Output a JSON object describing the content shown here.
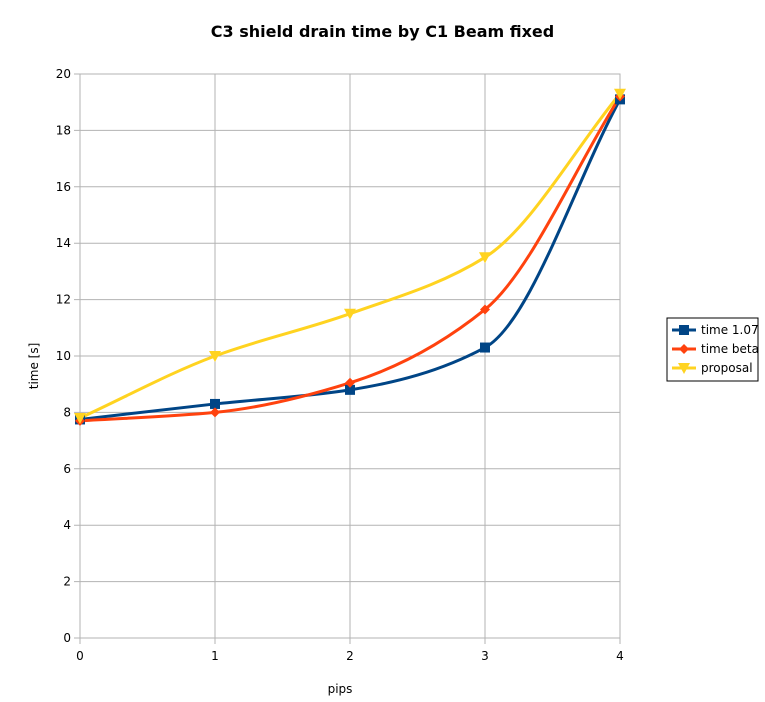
{
  "chart_data": {
    "type": "line",
    "title": "C3 shield drain time by C1 Beam fixed",
    "xlabel": "pips",
    "ylabel": "time [s]",
    "x": [
      0,
      1,
      2,
      3,
      4
    ],
    "xlim": [
      0,
      4
    ],
    "ylim": [
      0,
      20
    ],
    "x_ticks": [
      "0",
      "1",
      "2",
      "3",
      "4"
    ],
    "y_ticks": [
      "0",
      "2",
      "4",
      "6",
      "8",
      "10",
      "12",
      "14",
      "16",
      "18",
      "20"
    ],
    "grid": true,
    "smooth": true,
    "legend_position": "right",
    "series": [
      {
        "name": "time 1.07",
        "values": [
          7.75,
          8.3,
          8.8,
          10.3,
          19.1
        ],
        "color": "#004586",
        "marker": "square"
      },
      {
        "name": "time beta",
        "values": [
          7.7,
          8.0,
          9.05,
          11.65,
          19.2
        ],
        "color": "#ff420e",
        "marker": "diamond"
      },
      {
        "name": "proposal",
        "values": [
          7.8,
          10.0,
          11.5,
          13.5,
          19.3
        ],
        "color": "#ffd320",
        "marker": "triangle-down"
      }
    ]
  }
}
